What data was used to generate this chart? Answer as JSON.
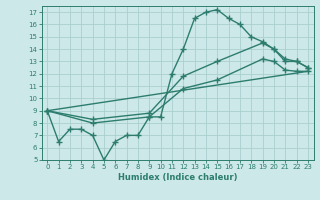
{
  "line1_x": [
    0,
    1,
    2,
    3,
    4,
    5,
    6,
    7,
    8,
    9,
    10,
    11,
    12,
    13,
    14,
    15,
    16,
    17,
    18,
    19,
    20,
    21,
    22,
    23
  ],
  "line1_y": [
    9.0,
    6.5,
    7.5,
    7.5,
    7.0,
    5.0,
    6.5,
    7.0,
    7.0,
    8.5,
    8.5,
    12.0,
    14.0,
    16.5,
    17.0,
    17.2,
    16.5,
    16.0,
    15.0,
    14.6,
    14.0,
    13.0,
    13.0,
    12.5
  ],
  "line2_x": [
    0,
    4,
    9,
    12,
    15,
    19,
    20,
    21,
    22,
    23
  ],
  "line2_y": [
    9.0,
    8.3,
    8.8,
    11.8,
    13.0,
    14.5,
    14.0,
    13.2,
    13.0,
    12.5
  ],
  "line3_x": [
    0,
    4,
    9,
    12,
    15,
    19,
    20,
    21,
    22,
    23
  ],
  "line3_y": [
    9.0,
    8.0,
    8.5,
    10.8,
    11.5,
    13.2,
    13.0,
    12.3,
    12.2,
    12.2
  ],
  "line4_x": [
    0,
    23
  ],
  "line4_y": [
    9.0,
    12.2
  ],
  "color": "#2d7d6e",
  "bg_color": "#cce8e8",
  "grid_color": "#aacfcf",
  "xlabel": "Humidex (Indice chaleur)",
  "ylim": [
    5,
    17.5
  ],
  "xlim": [
    -0.5,
    23.5
  ],
  "yticks": [
    5,
    6,
    7,
    8,
    9,
    10,
    11,
    12,
    13,
    14,
    15,
    16,
    17
  ],
  "xticks": [
    0,
    1,
    2,
    3,
    4,
    5,
    6,
    7,
    8,
    9,
    10,
    11,
    12,
    13,
    14,
    15,
    16,
    17,
    18,
    19,
    20,
    21,
    22,
    23
  ],
  "marker": "+",
  "markersize": 4.0,
  "linewidth": 1.0
}
